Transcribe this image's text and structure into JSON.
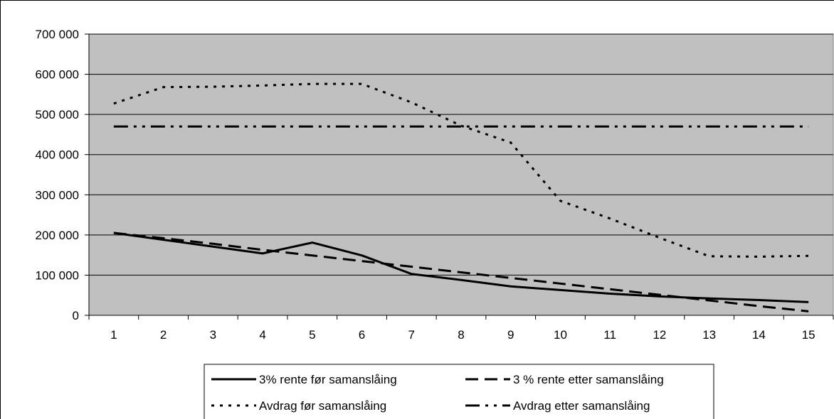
{
  "chart_data": {
    "type": "line",
    "x": [
      1,
      2,
      3,
      4,
      5,
      6,
      7,
      8,
      9,
      10,
      11,
      12,
      13,
      14,
      15
    ],
    "ylim": [
      0,
      700000
    ],
    "yticks": [
      0,
      100000,
      200000,
      300000,
      400000,
      500000,
      600000,
      700000
    ],
    "ytick_labels": [
      "0",
      "100 000",
      "200 000",
      "300 000",
      "400 000",
      "500 000",
      "600 000",
      "700 000"
    ],
    "xtick_labels": [
      "1",
      "2",
      "3",
      "4",
      "5",
      "6",
      "7",
      "8",
      "9",
      "10",
      "11",
      "12",
      "13",
      "14",
      "15"
    ],
    "grid": "horizontal",
    "plot_background": "#c0c0c0",
    "legend_position": "bottom",
    "series": [
      {
        "name": "3% rente før samanslåing",
        "style": "solid",
        "values": [
          205000,
          188000,
          171000,
          154000,
          181000,
          149000,
          103000,
          88000,
          72000,
          63000,
          54000,
          47000,
          42000,
          38000,
          33000
        ]
      },
      {
        "name": "3 % rente etter samanslåing",
        "style": "long-dash",
        "values": [
          205000,
          192000,
          178000,
          163000,
          149000,
          135000,
          121000,
          107000,
          93000,
          79000,
          65000,
          51000,
          37000,
          23000,
          10000
        ]
      },
      {
        "name": "Avdrag før samanslåing",
        "style": "dotted",
        "values": [
          527000,
          568000,
          569000,
          572000,
          576000,
          576000,
          530000,
          472000,
          430000,
          285000,
          241000,
          193000,
          147000,
          146000,
          148000
        ]
      },
      {
        "name": "Avdrag etter samanslåing",
        "style": "dash-dot-dot",
        "values": [
          470000,
          470000,
          470000,
          470000,
          470000,
          470000,
          470000,
          470000,
          470000,
          470000,
          470000,
          470000,
          470000,
          470000,
          470000
        ]
      }
    ]
  }
}
